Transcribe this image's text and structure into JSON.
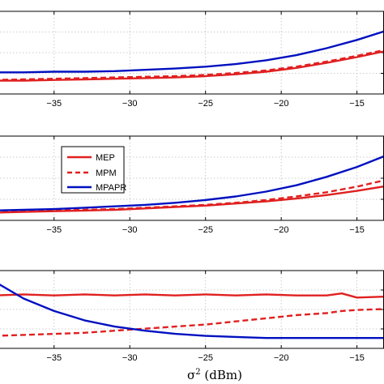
{
  "chart_data": [
    {
      "type": "line",
      "grid": true,
      "xlim": [
        -39,
        -13
      ],
      "xticks": [
        -35,
        -30,
        -25,
        -20,
        -15
      ],
      "tick_labels": [
        "−35",
        "−30",
        "−25",
        "−20",
        "−15"
      ],
      "series": [
        {
          "id": "MEP",
          "color": "#e02020",
          "dash": "solid",
          "x": [
            -39,
            -37,
            -35,
            -33,
            -31,
            -29,
            -27,
            -25,
            -23,
            -21,
            -19,
            -17,
            -15,
            -13
          ],
          "y": [
            0.21,
            0.21,
            0.22,
            0.23,
            0.24,
            0.25,
            0.26,
            0.28,
            0.31,
            0.35,
            0.41,
            0.49,
            0.58,
            0.68
          ]
        },
        {
          "id": "MPM",
          "color": "#e02020",
          "dash": "dashed",
          "x": [
            -39,
            -37,
            -35,
            -33,
            -31,
            -29,
            -27,
            -25,
            -23,
            -21,
            -19,
            -17,
            -15,
            -13
          ],
          "y": [
            0.22,
            0.23,
            0.24,
            0.25,
            0.26,
            0.27,
            0.28,
            0.3,
            0.33,
            0.37,
            0.43,
            0.51,
            0.6,
            0.7
          ]
        },
        {
          "id": "MPAPR",
          "color": "#0010c0",
          "dash": "solid",
          "x": [
            -39,
            -37,
            -35,
            -33,
            -31,
            -29,
            -27,
            -25,
            -23,
            -21,
            -19,
            -17,
            -15,
            -13
          ],
          "y": [
            0.34,
            0.34,
            0.35,
            0.35,
            0.36,
            0.38,
            0.4,
            0.43,
            0.47,
            0.53,
            0.61,
            0.72,
            0.85,
            1.0
          ]
        }
      ],
      "ylim": [
        0.0,
        1.3
      ]
    },
    {
      "type": "line",
      "grid": true,
      "xlim": [
        -39,
        -13
      ],
      "xticks": [
        -35,
        -30,
        -25,
        -20,
        -15
      ],
      "tick_labels": [
        "−35",
        "−30",
        "−25",
        "−20",
        "−15"
      ],
      "legend": {
        "position": "top-left",
        "entries": [
          "MEP",
          "MPM",
          "MPAPR"
        ]
      },
      "series": [
        {
          "name": "MEP",
          "color": "#e02020",
          "dash": "solid",
          "x": [
            -39,
            -37,
            -35,
            -33,
            -31,
            -29,
            -27,
            -25,
            -23,
            -21,
            -19,
            -17,
            -15,
            -13
          ],
          "y": [
            0.11,
            0.12,
            0.13,
            0.14,
            0.15,
            0.17,
            0.19,
            0.21,
            0.24,
            0.27,
            0.31,
            0.36,
            0.42,
            0.49
          ]
        },
        {
          "name": "MPM",
          "color": "#e02020",
          "dash": "dashed",
          "x": [
            -39,
            -37,
            -35,
            -33,
            -31,
            -29,
            -27,
            -25,
            -23,
            -21,
            -19,
            -17,
            -15,
            -13
          ],
          "y": [
            0.12,
            0.13,
            0.14,
            0.15,
            0.16,
            0.18,
            0.2,
            0.22,
            0.25,
            0.29,
            0.34,
            0.4,
            0.48,
            0.58
          ]
        },
        {
          "name": "MPAPR",
          "color": "#0010c0",
          "dash": "solid",
          "x": [
            -39,
            -37,
            -35,
            -33,
            -31,
            -29,
            -27,
            -25,
            -23,
            -21,
            -19,
            -17,
            -15,
            -13
          ],
          "y": [
            0.14,
            0.15,
            0.16,
            0.18,
            0.2,
            0.22,
            0.25,
            0.29,
            0.34,
            0.41,
            0.5,
            0.62,
            0.76,
            0.93
          ]
        }
      ],
      "ylim": [
        0.0,
        1.2
      ]
    },
    {
      "type": "line",
      "grid": true,
      "xlim": [
        -39,
        -13
      ],
      "xticks": [
        -35,
        -30,
        -25,
        -20,
        -15
      ],
      "tick_labels": [
        "−35",
        "−30",
        "−25",
        "−20",
        "−15"
      ],
      "xlabel_main": "σ",
      "xlabel_sup": "2",
      "xlabel_unit": " (dBm)",
      "series": [
        {
          "id": "MEP",
          "color": "#e02020",
          "dash": "solid",
          "x": [
            -39,
            -37,
            -35,
            -33,
            -31,
            -29,
            -27,
            -25,
            -23,
            -21,
            -19,
            -17,
            -16,
            -15,
            -13
          ],
          "y": [
            0.46,
            0.47,
            0.46,
            0.47,
            0.46,
            0.47,
            0.46,
            0.47,
            0.46,
            0.47,
            0.46,
            0.46,
            0.48,
            0.44,
            0.45
          ]
        },
        {
          "id": "MPM",
          "color": "#e02020",
          "dash": "dashed",
          "x": [
            -39,
            -37,
            -35,
            -33,
            -31,
            -29,
            -27,
            -25,
            -23,
            -21,
            -19,
            -17,
            -16,
            -15,
            -13
          ],
          "y": [
            0.07,
            0.08,
            0.09,
            0.1,
            0.12,
            0.14,
            0.16,
            0.18,
            0.21,
            0.24,
            0.27,
            0.29,
            0.31,
            0.32,
            0.33
          ]
        },
        {
          "id": "MPAPR",
          "color": "#0010c0",
          "dash": "solid",
          "x": [
            -39,
            -37,
            -35,
            -33,
            -31,
            -29,
            -27,
            -25,
            -23,
            -21,
            -19,
            -17,
            -15,
            -13
          ],
          "y": [
            0.6,
            0.43,
            0.31,
            0.22,
            0.16,
            0.12,
            0.09,
            0.07,
            0.06,
            0.05,
            0.05,
            0.05,
            0.05,
            0.05
          ]
        }
      ],
      "ylim": [
        -0.05,
        0.7
      ]
    }
  ]
}
